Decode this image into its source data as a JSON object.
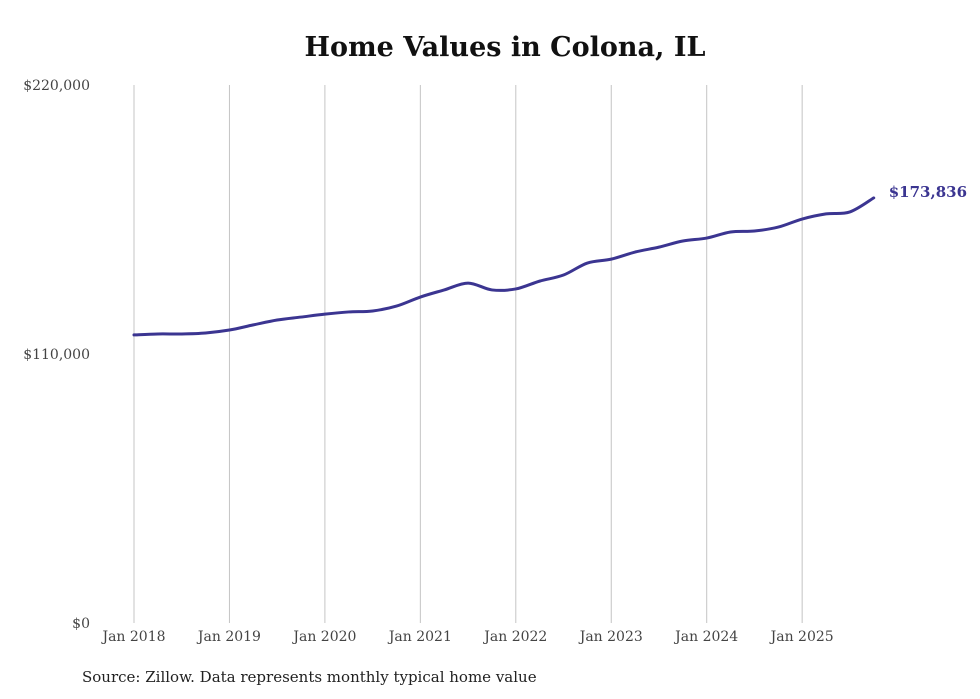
{
  "chart_data": {
    "type": "line",
    "title": "Home Values in Colona, IL",
    "source": "Source: Zillow. Data represents monthly typical home value",
    "xlabel": "",
    "ylabel": "",
    "ylim": [
      0,
      220000
    ],
    "y_ticks": [
      0,
      110000,
      220000
    ],
    "y_tick_labels": [
      "$0",
      "$110,000",
      "$220,000"
    ],
    "x_ticks": [
      "Jan 2018",
      "Jan 2019",
      "Jan 2020",
      "Jan 2021",
      "Jan 2022",
      "Jan 2023",
      "Jan 2024",
      "Jan 2025"
    ],
    "grid": "vertical",
    "line_color": "#3b3591",
    "end_label": "$173,836",
    "series": [
      {
        "name": "Typical home value",
        "x": [
          "2018-01",
          "2018-04",
          "2018-07",
          "2018-10",
          "2019-01",
          "2019-04",
          "2019-07",
          "2019-10",
          "2020-01",
          "2020-04",
          "2020-07",
          "2020-10",
          "2021-01",
          "2021-04",
          "2021-07",
          "2021-10",
          "2022-01",
          "2022-04",
          "2022-07",
          "2022-10",
          "2023-01",
          "2023-04",
          "2023-07",
          "2023-10",
          "2024-01",
          "2024-04",
          "2024-07",
          "2024-10",
          "2025-01",
          "2025-04",
          "2025-07",
          "2025-10"
        ],
        "values": [
          117800,
          118200,
          118200,
          118600,
          119800,
          121900,
          123900,
          125100,
          126300,
          127200,
          127600,
          129600,
          133300,
          136200,
          139000,
          136200,
          136600,
          139800,
          142300,
          147200,
          148800,
          151700,
          153700,
          156200,
          157400,
          159900,
          160300,
          161900,
          165200,
          167300,
          168100,
          173836
        ]
      }
    ]
  }
}
